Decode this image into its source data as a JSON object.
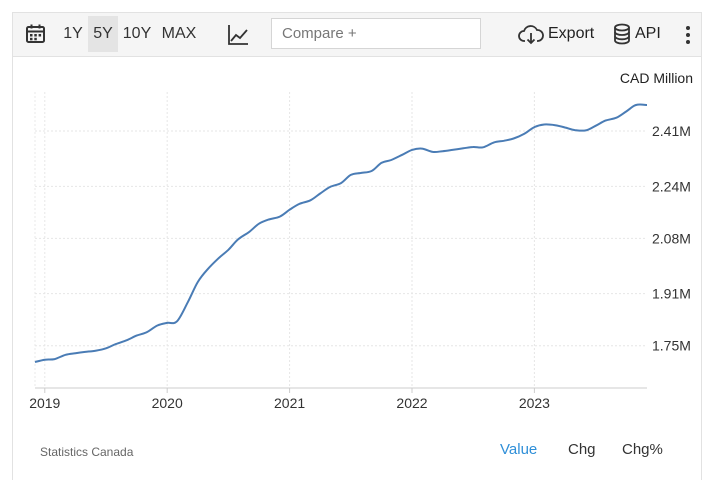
{
  "toolbar": {
    "ranges": [
      {
        "label": "1Y",
        "active": false
      },
      {
        "label": "5Y",
        "active": true
      },
      {
        "label": "10Y",
        "active": false
      },
      {
        "label": "MAX",
        "active": false
      }
    ],
    "compare_placeholder": "Compare +",
    "export_label": "Export",
    "api_label": "API",
    "icons": [
      "calendar-icon",
      "line-chart-icon",
      "cloud-download-icon",
      "database-icon",
      "kebab-menu-icon"
    ]
  },
  "chart_data": {
    "type": "line",
    "ylabel": "CAD Million",
    "ylim": [
      1.62,
      2.53
    ],
    "yticks": [
      1.75,
      1.91,
      2.08,
      2.24,
      2.41
    ],
    "ytick_labels": [
      "1.75M",
      "1.91M",
      "2.08M",
      "2.24M",
      "2.41M"
    ],
    "xticks": [
      2019,
      2020,
      2021,
      2022,
      2023
    ],
    "xlim": [
      2018.92,
      2023.92
    ],
    "grid": true,
    "series": [
      {
        "color": "#4a7cb5",
        "x": [
          2018.92,
          2019.0,
          2019.08,
          2019.17,
          2019.25,
          2019.33,
          2019.42,
          2019.5,
          2019.58,
          2019.67,
          2019.75,
          2019.83,
          2019.92,
          2020.0,
          2020.08,
          2020.17,
          2020.25,
          2020.33,
          2020.42,
          2020.5,
          2020.58,
          2020.67,
          2020.75,
          2020.83,
          2020.92,
          2021.0,
          2021.08,
          2021.17,
          2021.25,
          2021.33,
          2021.42,
          2021.5,
          2021.58,
          2021.67,
          2021.75,
          2021.83,
          2021.92,
          2022.0,
          2022.08,
          2022.17,
          2022.25,
          2022.33,
          2022.42,
          2022.5,
          2022.58,
          2022.67,
          2022.75,
          2022.83,
          2022.92,
          2023.0,
          2023.08,
          2023.17,
          2023.25,
          2023.33,
          2023.42,
          2023.5,
          2023.58,
          2023.67,
          2023.75,
          2023.83,
          2023.92
        ],
        "values": [
          1.7,
          1.707,
          1.709,
          1.722,
          1.727,
          1.731,
          1.735,
          1.742,
          1.755,
          1.767,
          1.781,
          1.791,
          1.812,
          1.82,
          1.825,
          1.885,
          1.946,
          1.985,
          2.019,
          2.045,
          2.077,
          2.1,
          2.125,
          2.138,
          2.147,
          2.168,
          2.186,
          2.197,
          2.218,
          2.238,
          2.25,
          2.275,
          2.281,
          2.287,
          2.312,
          2.321,
          2.337,
          2.352,
          2.356,
          2.346,
          2.348,
          2.352,
          2.357,
          2.361,
          2.36,
          2.375,
          2.38,
          2.387,
          2.402,
          2.422,
          2.43,
          2.428,
          2.421,
          2.413,
          2.412,
          2.426,
          2.442,
          2.451,
          2.47,
          2.49,
          2.49
        ]
      }
    ]
  },
  "footer": {
    "source": "Statistics Canada",
    "modes": [
      {
        "label": "Value",
        "active": true
      },
      {
        "label": "Chg",
        "active": false
      },
      {
        "label": "Chg%",
        "active": false
      }
    ],
    "active_color": "#2f8fd8"
  }
}
